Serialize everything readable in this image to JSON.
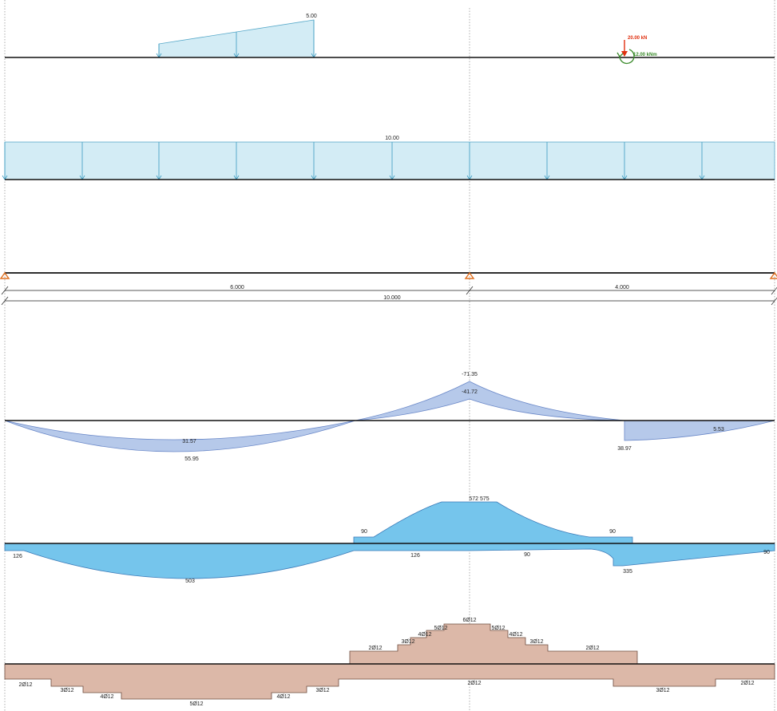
{
  "colors": {
    "load_fill": "#d3ecf5",
    "load_stroke": "#58a9c9",
    "moment_fill": "#b6c9ea",
    "moment_stroke": "#6a88c8",
    "steel_fill": "#75c5ec",
    "steel_stroke": "#3a7ab8",
    "rebar_fill": "#dcb8a8",
    "rebar_stroke": "#6e4c3e",
    "support": "#e07020",
    "point_load": "#e03010",
    "point_moment": "#3a8a2a"
  },
  "loads": {
    "trapezoid_value": "5.00",
    "point_force": "20.00 kN",
    "point_moment": "12.00 kNm",
    "uniform_value": "10.00"
  },
  "geometry": {
    "span1": "6.000",
    "span2": "4.000",
    "total": "10.000"
  },
  "moments": {
    "support_max": "-71.35",
    "support_min": "-41.72",
    "span1_min": "31.57",
    "span1_max": "55.95",
    "span2_min": "5.53",
    "span2_max": "38.97"
  },
  "reinforcement_areas": {
    "top_left": "90",
    "top_peak": "572 575",
    "top_right": "90",
    "bottom_left": "126",
    "bottom_mid": "126",
    "bottom_after_support": "90",
    "bottom_span1": "503",
    "bottom_span2": "335",
    "bottom_right": "90"
  },
  "rebars": {
    "top": [
      "2Ø12",
      "3Ø12",
      "4Ø12",
      "5Ø12",
      "6Ø12",
      "5Ø12",
      "4Ø12",
      "3Ø12",
      "2Ø12"
    ],
    "bottom": [
      "2Ø12",
      "3Ø12",
      "4Ø12",
      "5Ø12",
      "4Ø12",
      "3Ø12",
      "2Ø12",
      "3Ø12",
      "2Ø12"
    ]
  }
}
